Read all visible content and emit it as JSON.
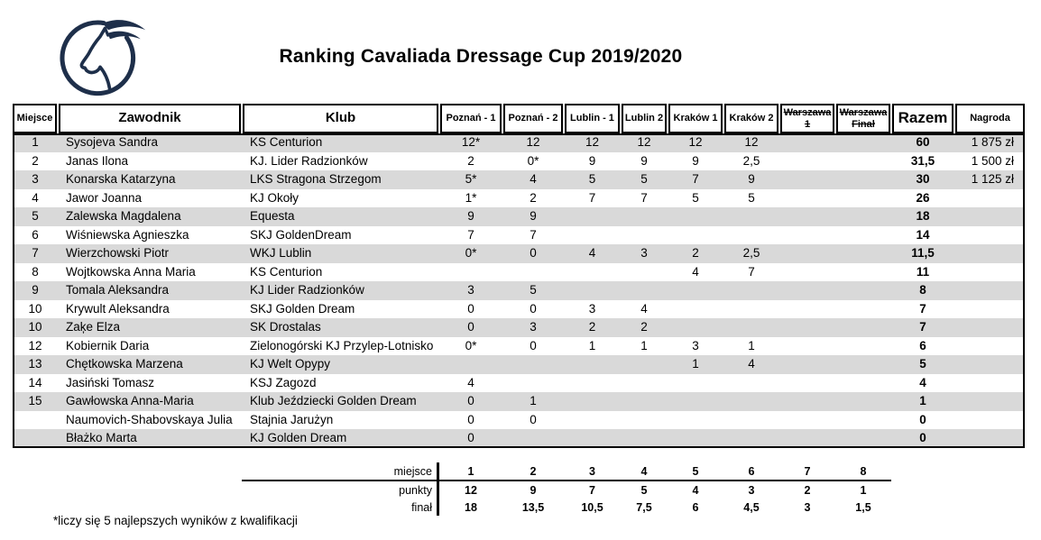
{
  "page": {
    "title": "Ranking Cavaliada Dressage Cup 2019/2020",
    "footnote": "*liczy się 5 najlepszych wyników z kwalifikacji",
    "logo_color": "#1e2f4a",
    "row_alt_color": "#d9d9d9"
  },
  "ranking_table": {
    "columns": [
      {
        "label": "Miejsce"
      },
      {
        "label": "Zawodnik",
        "big": true
      },
      {
        "label": "Klub",
        "big": true
      },
      {
        "label": "Poznań - 1"
      },
      {
        "label": "Poznań - 2"
      },
      {
        "label": "Lublin - 1"
      },
      {
        "label": "Lublin 2"
      },
      {
        "label": "Kraków 1"
      },
      {
        "label": "Kraków 2"
      },
      {
        "label": "Warszawa 1",
        "struck": true,
        "lines": [
          "Warszawa",
          "1"
        ]
      },
      {
        "label": "Warszawa Finał",
        "struck": true,
        "lines": [
          "Warszawa",
          "Finał"
        ]
      },
      {
        "label": "Razem",
        "razem": true
      },
      {
        "label": "Nagroda"
      }
    ],
    "rows": [
      {
        "miejsce": "1",
        "zawodnik": "Sysojeva Sandra",
        "klub": "KS Centurion",
        "scores": [
          "12*",
          "12",
          "12",
          "12",
          "12",
          "12",
          "",
          ""
        ],
        "razem": "60",
        "nagroda": "1 875 zł"
      },
      {
        "miejsce": "2",
        "zawodnik": "Janas Ilona",
        "klub": "KJ. Lider Radzionków",
        "scores": [
          "2",
          "0*",
          "9",
          "9",
          "9",
          "2,5",
          "",
          ""
        ],
        "razem": "31,5",
        "nagroda": "1 500 zł"
      },
      {
        "miejsce": "3",
        "zawodnik": "Konarska Katarzyna",
        "klub": "LKS Stragona Strzegom",
        "scores": [
          "5*",
          "4",
          "5",
          "5",
          "7",
          "9",
          "",
          ""
        ],
        "razem": "30",
        "nagroda": "1 125 zł"
      },
      {
        "miejsce": "4",
        "zawodnik": "Jawor Joanna",
        "klub": "KJ Okoły",
        "scores": [
          "1*",
          "2",
          "7",
          "7",
          "5",
          "5",
          "",
          ""
        ],
        "razem": "26",
        "nagroda": ""
      },
      {
        "miejsce": "5",
        "zawodnik": "Zalewska Magdalena",
        "klub": "Equesta",
        "scores": [
          "9",
          "9",
          "",
          "",
          "",
          "",
          "",
          ""
        ],
        "razem": "18",
        "nagroda": ""
      },
      {
        "miejsce": "6",
        "zawodnik": "Wiśniewska Agnieszka",
        "klub": "SKJ GoldenDream",
        "scores": [
          "7",
          "7",
          "",
          "",
          "",
          "",
          "",
          ""
        ],
        "razem": "14",
        "nagroda": ""
      },
      {
        "miejsce": "7",
        "zawodnik": "Wierzchowski Piotr",
        "klub": "WKJ Lublin",
        "scores": [
          "0*",
          "0",
          "4",
          "3",
          "2",
          "2,5",
          "",
          ""
        ],
        "razem": "11,5",
        "nagroda": ""
      },
      {
        "miejsce": "8",
        "zawodnik": "Wojtkowska Anna Maria",
        "klub": "KS Centurion",
        "scores": [
          "",
          "",
          "",
          "",
          "4",
          "7",
          "",
          ""
        ],
        "razem": "11",
        "nagroda": ""
      },
      {
        "miejsce": "9",
        "zawodnik": "Tomala Aleksandra",
        "klub": "KJ Lider Radzionków",
        "scores": [
          "3",
          "5",
          "",
          "",
          "",
          "",
          "",
          ""
        ],
        "razem": "8",
        "nagroda": ""
      },
      {
        "miejsce": "10",
        "zawodnik": "Krywult Aleksandra",
        "klub": "SKJ Golden Dream",
        "scores": [
          "0",
          "0",
          "3",
          "4",
          "",
          "",
          "",
          ""
        ],
        "razem": "7",
        "nagroda": ""
      },
      {
        "miejsce": "10",
        "zawodnik": "Zaķe Elza",
        "klub": "SK Drostalas",
        "scores": [
          "0",
          "3",
          "2",
          "2",
          "",
          "",
          "",
          ""
        ],
        "razem": "7",
        "nagroda": ""
      },
      {
        "miejsce": "12",
        "zawodnik": "Kobiernik Daria",
        "klub": "Zielonogórski KJ Przylep-Lotnisko",
        "scores": [
          "0*",
          "0",
          "1",
          "1",
          "3",
          "1",
          "",
          ""
        ],
        "razem": "6",
        "nagroda": ""
      },
      {
        "miejsce": "13",
        "zawodnik": "Chętkowska Marzena",
        "klub": "KJ Welt Opypy",
        "scores": [
          "",
          "",
          "",
          "",
          "1",
          "4",
          "",
          ""
        ],
        "razem": "5",
        "nagroda": ""
      },
      {
        "miejsce": "14",
        "zawodnik": "Jasiński Tomasz",
        "klub": "KSJ Zagozd",
        "scores": [
          "4",
          "",
          "",
          "",
          "",
          "",
          "",
          ""
        ],
        "razem": "4",
        "nagroda": ""
      },
      {
        "miejsce": "15",
        "zawodnik": "Gawłowska Anna-Maria",
        "klub": "Klub Jeździecki Golden Dream",
        "scores": [
          "0",
          "1",
          "",
          "",
          "",
          "",
          "",
          ""
        ],
        "razem": "1",
        "nagroda": ""
      },
      {
        "miejsce": "",
        "zawodnik": "Naumovich-Shabovskaya Julia",
        "klub": "Stajnia Jarużyn",
        "scores": [
          "0",
          "0",
          "",
          "",
          "",
          "",
          "",
          ""
        ],
        "razem": "0",
        "nagroda": ""
      },
      {
        "miejsce": "",
        "zawodnik": "Błażko Marta",
        "klub": "KJ Golden Dream",
        "scores": [
          "0",
          "",
          "",
          "",
          "",
          "",
          "",
          ""
        ],
        "razem": "0",
        "nagroda": ""
      }
    ]
  },
  "points_table": {
    "rows": [
      {
        "label": "miejsce",
        "values": [
          "1",
          "2",
          "3",
          "4",
          "5",
          "6",
          "7",
          "8"
        ]
      },
      {
        "label": "punkty",
        "values": [
          "12",
          "9",
          "7",
          "5",
          "4",
          "3",
          "2",
          "1"
        ]
      },
      {
        "label": "finał",
        "values": [
          "18",
          "13,5",
          "10,5",
          "7,5",
          "6",
          "4,5",
          "3",
          "1,5"
        ]
      }
    ]
  }
}
